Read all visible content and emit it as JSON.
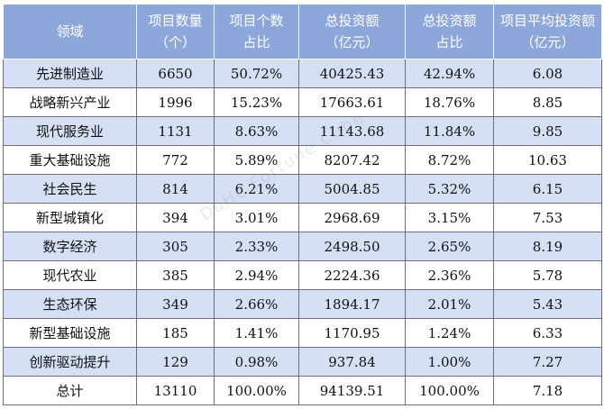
{
  "headers": [
    {
      "line1": "领域",
      "line2": ""
    },
    {
      "line1": "项目数量",
      "line2": "（个）"
    },
    {
      "line1": "项目个数",
      "line2": "占比"
    },
    {
      "line1": "总投资额",
      "line2": "（亿元）"
    },
    {
      "line1": "总投资额",
      "line2": "占比"
    },
    {
      "line1": "项目平均投资额",
      "line2": "（亿元）"
    }
  ],
  "rows": [
    [
      "先进制造业",
      "6650",
      "50.72%",
      "40425.43",
      "42.94%",
      "6.08"
    ],
    [
      "战略新兴产业",
      "1996",
      "15.23%",
      "17663.61",
      "18.76%",
      "8.85"
    ],
    [
      "现代服务业",
      "1131",
      "8.63%",
      "11143.68",
      "11.84%",
      "9.85"
    ],
    [
      "重大基础设施",
      "772",
      "5.89%",
      "8207.42",
      "8.72%",
      "10.63"
    ],
    [
      "社会民生",
      "814",
      "6.21%",
      "5004.85",
      "5.32%",
      "6.15"
    ],
    [
      "新型城镇化",
      "394",
      "3.01%",
      "2968.69",
      "3.15%",
      "7.53"
    ],
    [
      "数字经济",
      "305",
      "2.33%",
      "2498.50",
      "2.65%",
      "8.19"
    ],
    [
      "现代农业",
      "385",
      "2.94%",
      "2224.36",
      "2.36%",
      "5.78"
    ],
    [
      "生态环保",
      "349",
      "2.66%",
      "1894.17",
      "2.01%",
      "5.43"
    ],
    [
      "新型基础设施",
      "185",
      "1.41%",
      "1170.95",
      "1.24%",
      "6.33"
    ],
    [
      "创新驱动提升",
      "129",
      "0.98%",
      "937.84",
      "1.00%",
      "7.27"
    ],
    [
      "总计",
      "13110",
      "100.00%",
      "94139.51",
      "100.00%",
      "7.18"
    ]
  ],
  "watermark": "DaHe Fortune Cube",
  "colors": {
    "header_bg": "#8ea7db",
    "row_shade": "#d6e0f4",
    "border": "#6e6e6e"
  }
}
